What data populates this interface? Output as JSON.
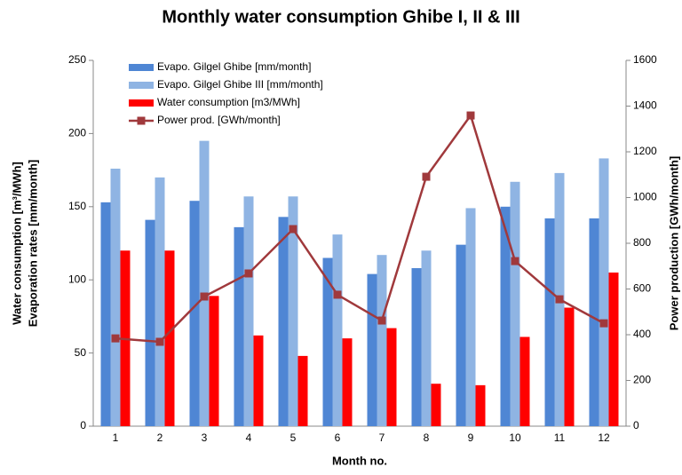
{
  "chart_data": {
    "type": "bar",
    "title": "Monthly water consumption Ghibe I, II & III",
    "x_label": "Month no.",
    "y_label": [
      "Water consumption [m³/MWh]",
      "Evaporation rates [mm/month]"
    ],
    "y2_label": "Power production [GWh/month]",
    "categories": [
      "1",
      "2",
      "3",
      "4",
      "5",
      "6",
      "7",
      "8",
      "9",
      "10",
      "11",
      "12"
    ],
    "series": [
      {
        "name": "Evapo. Gilgel Ghibe  [mm/month]",
        "type": "bar",
        "color": "#4f86d4",
        "values": [
          153,
          141,
          154,
          136,
          143,
          115,
          104,
          108,
          124,
          150,
          142,
          142
        ]
      },
      {
        "name": "Evapo. Gilgel Ghibe III [mm/month]",
        "type": "bar",
        "color": "#8fb4e3",
        "values": [
          176,
          170,
          195,
          157,
          157,
          131,
          117,
          120,
          149,
          167,
          173,
          183
        ]
      },
      {
        "name": "Water consumption [m3/MWh]",
        "type": "bar",
        "color": "#ff0000",
        "values": [
          120,
          120,
          89,
          62,
          48,
          60,
          67,
          29,
          28,
          61,
          81,
          105
        ]
      },
      {
        "name": "Power prod. [GWh/month]",
        "type": "line",
        "axis": "y2",
        "color": "#a0393c",
        "values": [
          384,
          369,
          567,
          668,
          862,
          575,
          462,
          1091,
          1359,
          722,
          555,
          450
        ]
      }
    ],
    "ylim": [
      0,
      250
    ],
    "yticks": [
      0,
      50,
      100,
      150,
      200,
      250
    ],
    "y2lim": [
      0,
      1600
    ],
    "y2ticks": [
      0,
      200,
      400,
      600,
      800,
      1000,
      1200,
      1400,
      1600
    ]
  }
}
